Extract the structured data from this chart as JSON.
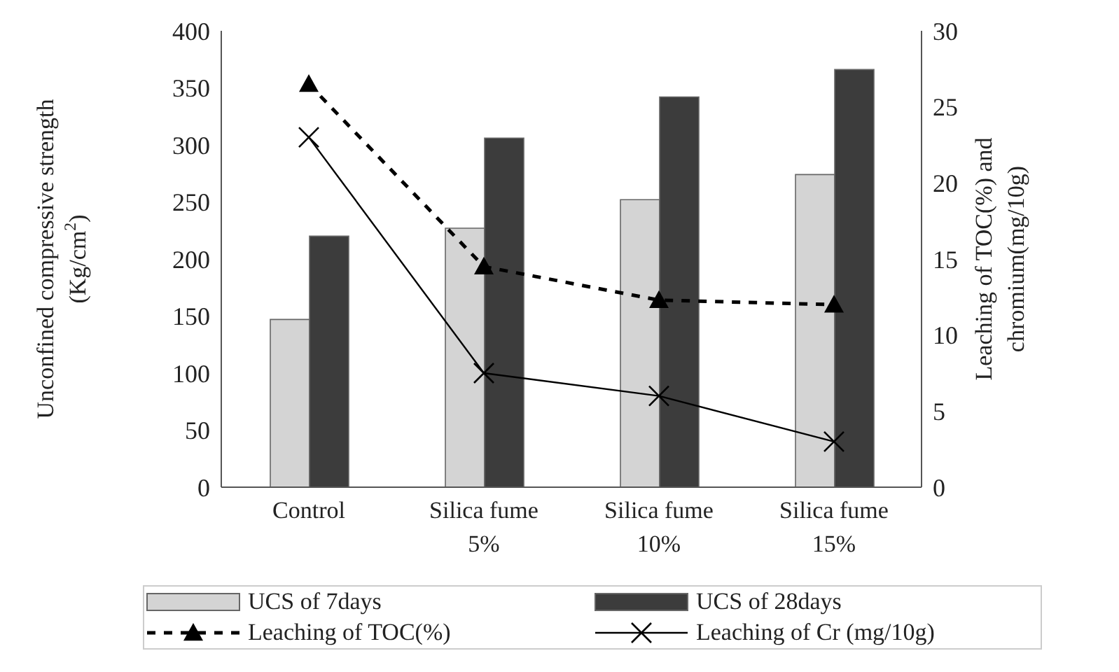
{
  "chart_data": {
    "type": "bar",
    "categories": [
      "Control",
      "Silica fume 5%",
      "Silica fume 10%",
      "Silica fume 15%"
    ],
    "ylabel": "Unconfined compressive strength (Kg/cm$^{2}$)",
    "y2label": "Leaching of TOC(%) and chromium(mg/10g)",
    "ylim": [
      0,
      400
    ],
    "yticks": [
      0,
      50,
      100,
      150,
      200,
      250,
      300,
      350,
      400
    ],
    "y2lim": [
      0,
      30
    ],
    "y2ticks": [
      0,
      5,
      10,
      15,
      20,
      25,
      30
    ],
    "legend": "bottom",
    "grid": false,
    "series": [
      {
        "name": "UCS of 7days",
        "color": "#d4d4d4",
        "values": [
          147,
          227,
          252,
          274
        ]
      },
      {
        "name": "UCS of 28days",
        "color": "#3c3c3c",
        "values": [
          220,
          306,
          342,
          366
        ]
      },
      {
        "name": "Leaching of TOC(%)",
        "type": "line",
        "axis": "y2",
        "color": "#000000",
        "marker": "triangle",
        "line_style": "dashed",
        "values": [
          26.5,
          14.5,
          12.3,
          12
        ]
      },
      {
        "name": "Leaching of Cr (mg/10g)",
        "type": "line",
        "axis": "y2",
        "color": "#000000",
        "marker": "cross",
        "line_style": "solid",
        "values": [
          23,
          7.5,
          6,
          3
        ]
      }
    ]
  }
}
